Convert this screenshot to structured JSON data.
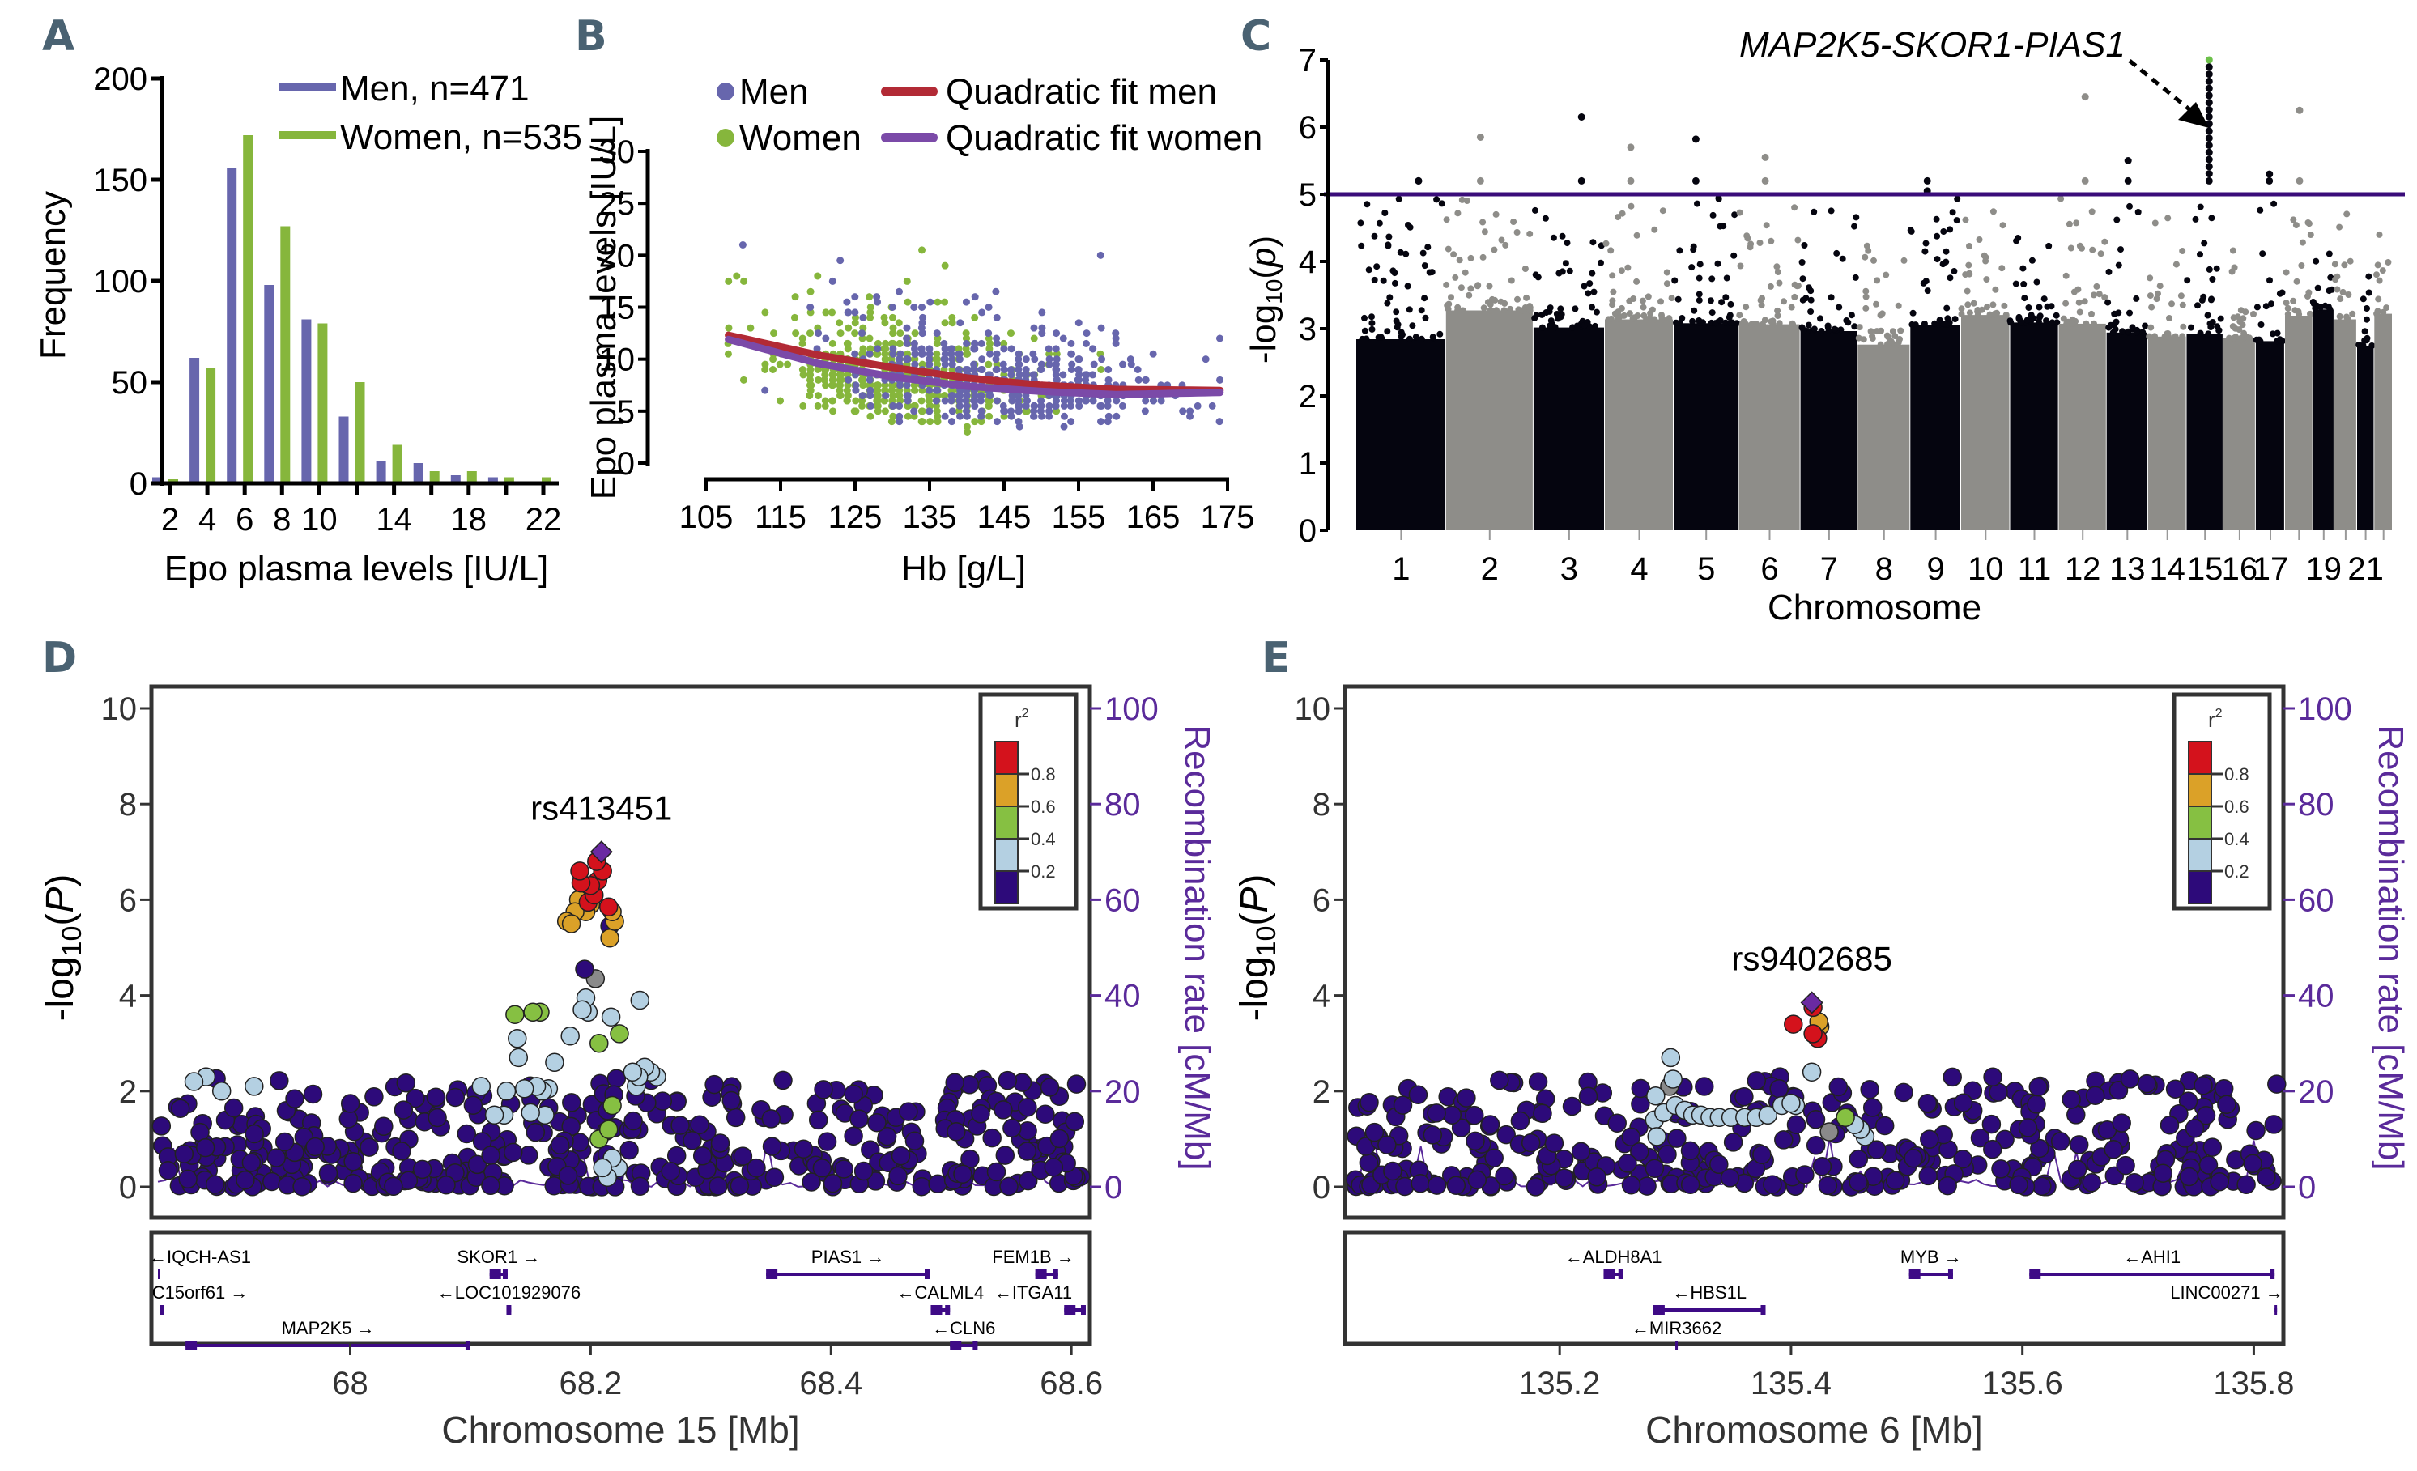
{
  "panels": {
    "A": "A",
    "B": "B",
    "C": "C",
    "D": "D",
    "E": "E"
  },
  "colors": {
    "men": "#6766ad",
    "women": "#86b63c",
    "fit_men": "#b22a35",
    "fit_women": "#7b4aa8",
    "threshold": "#3a0c7a",
    "chrom_dark": "#05050f",
    "chrom_light": "#8e8d89",
    "highlight": "#6cc04a",
    "r2_bins": [
      "#2d0a7a",
      "#b4d0e2",
      "#86c042",
      "#dba128",
      "#d4121c"
    ],
    "lead_snp": "#6a2aa2",
    "gene": "#3e0a86",
    "recomb": "#5a2a9a",
    "missing_r2": "#8a8a8a"
  },
  "chart_data": [
    {
      "id": "A",
      "type": "bar",
      "title": "",
      "xlabel": "Epo plasma levels [IU/L]",
      "ylabel": "Frequency",
      "ylim": [
        0,
        200
      ],
      "yticks": [
        0,
        50,
        100,
        150,
        200
      ],
      "categories": [
        2,
        4,
        6,
        8,
        10,
        12,
        14,
        16,
        18,
        20,
        22
      ],
      "xtick_labels": [
        "2",
        "4",
        "6",
        "8",
        "10",
        "14",
        "18",
        "22"
      ],
      "xtick_positions": [
        2,
        4,
        6,
        8,
        10,
        14,
        18,
        22
      ],
      "series": [
        {
          "name": "Men, n=471",
          "values": [
            3,
            62,
            156,
            98,
            81,
            33,
            11,
            10,
            4,
            3,
            0
          ]
        },
        {
          "name": "Women, n=535",
          "values": [
            2,
            57,
            172,
            127,
            79,
            50,
            19,
            6,
            6,
            3,
            3
          ]
        }
      ],
      "legend": "top-right"
    },
    {
      "id": "B",
      "type": "scatter",
      "xlabel": "Hb [g/L]",
      "ylabel": "Epo plasma levels [IU/L]",
      "xlim": [
        105,
        175
      ],
      "ylim": [
        0,
        30
      ],
      "xticks": [
        105,
        115,
        125,
        135,
        145,
        155,
        165,
        175
      ],
      "yticks": [
        0,
        5,
        10,
        15,
        20,
        25,
        30
      ],
      "series": [
        {
          "name": "Men",
          "kind": "points",
          "hb_range": [
            108,
            174
          ],
          "mean_hb": 146,
          "sd_hb": 11,
          "n": 471
        },
        {
          "name": "Women",
          "kind": "points",
          "hb_range": [
            108,
            158
          ],
          "mean_hb": 132,
          "sd_hb": 9,
          "n": 535
        },
        {
          "name": "Quadratic fit men",
          "kind": "line",
          "x": [
            108,
            120,
            130,
            140,
            150,
            160,
            174
          ],
          "y": [
            12.3,
            10.4,
            9.2,
            8.2,
            7.5,
            7.1,
            7.0
          ]
        },
        {
          "name": "Quadratic fit women",
          "kind": "line",
          "x": [
            108,
            120,
            130,
            140,
            150,
            160,
            174
          ],
          "y": [
            11.9,
            9.6,
            8.3,
            7.4,
            6.9,
            6.6,
            6.8
          ]
        }
      ],
      "legend": "top"
    },
    {
      "id": "C",
      "type": "scatter",
      "subtype": "manhattan",
      "xlabel": "Chromosome",
      "ylabel": "-log10(p)",
      "ylim": [
        0,
        7
      ],
      "yticks": [
        0,
        1,
        2,
        3,
        4,
        5,
        6,
        7
      ],
      "threshold": 5,
      "chromosome_labels": [
        "1",
        "2",
        "3",
        "4",
        "5",
        "6",
        "7",
        "8",
        "9",
        "10",
        "11",
        "12",
        "13",
        "14",
        "15",
        "16",
        "17",
        "19",
        "21"
      ],
      "chromosomes": [
        {
          "chr": 1,
          "max": 5.2
        },
        {
          "chr": 2,
          "max": 5.85
        },
        {
          "chr": 3,
          "max": 6.15
        },
        {
          "chr": 4,
          "max": 5.7
        },
        {
          "chr": 5,
          "max": 5.82
        },
        {
          "chr": 6,
          "max": 5.55
        },
        {
          "chr": 7,
          "max": 4.9
        },
        {
          "chr": 8,
          "max": 4.3
        },
        {
          "chr": 9,
          "max": 5.05
        },
        {
          "chr": 10,
          "max": 4.75
        },
        {
          "chr": 11,
          "max": 4.4
        },
        {
          "chr": 12,
          "max": 6.45
        },
        {
          "chr": 13,
          "max": 5.5
        },
        {
          "chr": 14,
          "max": 4.7
        },
        {
          "chr": 15,
          "max": 7.0
        },
        {
          "chr": 16,
          "max": 4.4
        },
        {
          "chr": 17,
          "max": 5.3
        },
        {
          "chr": 18,
          "max": 6.25
        },
        {
          "chr": 19,
          "max": 4.6
        },
        {
          "chr": 20,
          "max": 4.85
        },
        {
          "chr": 21,
          "max": 4.2
        },
        {
          "chr": 22,
          "max": 4.45
        }
      ],
      "annotation": "MAP2K5-SKOR1-PIAS1",
      "annotation_target_chr": 15
    },
    {
      "id": "D",
      "type": "scatter",
      "subtype": "regional-association",
      "xlabel": "Chromosome 15 [Mb]",
      "ylabel": "-log10(P)",
      "y2label": "Recombination rate [cM/Mb]",
      "xlim": [
        67.84,
        68.61
      ],
      "ylim": [
        -0.5,
        10.5
      ],
      "yticks": [
        0,
        2,
        4,
        6,
        8,
        10
      ],
      "y2ticks": [
        0,
        20,
        40,
        60,
        80,
        100
      ],
      "xticks": [
        68.0,
        68.2,
        68.4,
        68.6
      ],
      "xtick_labels": [
        "68",
        "68.2",
        "68.4",
        "68.6"
      ],
      "lead_snp": {
        "label": "rs413451",
        "x": 68.209,
        "y": 7.0
      },
      "legend_title": "r²",
      "legend_ticks": [
        "0.8",
        "0.6",
        "0.4",
        "0.2"
      ],
      "highlight_points": [
        {
          "x": 68.209,
          "y": 7.0,
          "r2": "lead"
        },
        {
          "x": 68.205,
          "y": 6.8,
          "r2": 0.9
        },
        {
          "x": 68.191,
          "y": 6.6,
          "r2": 0.9
        },
        {
          "x": 68.21,
          "y": 6.6,
          "r2": 0.9
        },
        {
          "x": 68.192,
          "y": 6.35,
          "r2": 0.9
        },
        {
          "x": 68.2,
          "y": 6.3,
          "r2": 0.9
        },
        {
          "x": 68.206,
          "y": 6.4,
          "r2": 0.9
        },
        {
          "x": 68.203,
          "y": 6.1,
          "r2": 0.9
        },
        {
          "x": 68.198,
          "y": 5.95,
          "r2": 0.9
        },
        {
          "x": 68.215,
          "y": 5.85,
          "r2": 0.9
        },
        {
          "x": 68.184,
          "y": 5.5,
          "r2": 0.7
        },
        {
          "x": 68.18,
          "y": 5.55,
          "r2": 0.7
        },
        {
          "x": 68.187,
          "y": 5.75,
          "r2": 0.7
        },
        {
          "x": 68.19,
          "y": 6.0,
          "r2": 0.7
        },
        {
          "x": 68.196,
          "y": 5.75,
          "r2": 0.7
        },
        {
          "x": 68.2,
          "y": 5.9,
          "r2": 0.7
        },
        {
          "x": 68.218,
          "y": 5.75,
          "r2": 0.7
        },
        {
          "x": 68.22,
          "y": 5.55,
          "r2": 0.7
        },
        {
          "x": 68.216,
          "y": 5.2,
          "r2": 0.7
        },
        {
          "x": 68.216,
          "y": 5.45,
          "r2": 0.1
        },
        {
          "x": 68.195,
          "y": 4.55,
          "r2": 0.1
        },
        {
          "x": 68.204,
          "y": 4.35,
          "r2": "na"
        },
        {
          "x": 68.137,
          "y": 3.6,
          "r2": 0.5
        },
        {
          "x": 68.152,
          "y": 3.65,
          "r2": 0.5
        },
        {
          "x": 68.158,
          "y": 3.65,
          "r2": 0.5
        },
        {
          "x": 68.207,
          "y": 3.0,
          "r2": 0.5
        },
        {
          "x": 68.224,
          "y": 3.2,
          "r2": 0.5
        },
        {
          "x": 68.218,
          "y": 1.7,
          "r2": 0.5
        },
        {
          "x": 68.215,
          "y": 1.2,
          "r2": 0.5
        },
        {
          "x": 68.207,
          "y": 1.0,
          "r2": 0.5
        },
        {
          "x": 68.193,
          "y": 3.7,
          "r2": 0.3
        },
        {
          "x": 68.196,
          "y": 3.95,
          "r2": 0.3
        },
        {
          "x": 68.198,
          "y": 3.65,
          "r2": 0.3
        },
        {
          "x": 68.217,
          "y": 3.55,
          "r2": 0.3
        },
        {
          "x": 68.241,
          "y": 3.9,
          "r2": 0.3
        },
        {
          "x": 68.139,
          "y": 3.1,
          "r2": 0.3
        },
        {
          "x": 68.14,
          "y": 2.7,
          "r2": 0.3
        },
        {
          "x": 68.183,
          "y": 3.15,
          "r2": 0.3
        },
        {
          "x": 68.17,
          "y": 2.6,
          "r2": 0.3
        },
        {
          "x": 68.235,
          "y": 2.4,
          "r2": 0.3
        },
        {
          "x": 68.24,
          "y": 2.3,
          "r2": 0.3
        },
        {
          "x": 68.245,
          "y": 2.5,
          "r2": 0.3
        },
        {
          "x": 68.25,
          "y": 2.4,
          "r2": 0.3
        },
        {
          "x": 68.255,
          "y": 2.3,
          "r2": 0.3
        },
        {
          "x": 68.238,
          "y": 2.1,
          "r2": 0.3
        },
        {
          "x": 68.13,
          "y": 2.0,
          "r2": 0.3
        },
        {
          "x": 68.145,
          "y": 2.05,
          "r2": 0.3
        },
        {
          "x": 68.155,
          "y": 2.1,
          "r2": 0.3
        },
        {
          "x": 68.16,
          "y": 2.0,
          "r2": 0.3
        },
        {
          "x": 68.165,
          "y": 2.05,
          "r2": 0.3
        },
        {
          "x": 68.109,
          "y": 2.1,
          "r2": 0.3
        },
        {
          "x": 67.87,
          "y": 2.2,
          "r2": 0.3
        },
        {
          "x": 67.88,
          "y": 2.3,
          "r2": 0.3
        },
        {
          "x": 67.893,
          "y": 2.0,
          "r2": 0.3
        },
        {
          "x": 67.92,
          "y": 2.1,
          "r2": 0.3
        },
        {
          "x": 68.21,
          "y": 0.4,
          "r2": 0.3
        },
        {
          "x": 68.214,
          "y": 0.2,
          "r2": 0.3
        },
        {
          "x": 68.218,
          "y": 0.6,
          "r2": 0.3
        },
        {
          "x": 68.223,
          "y": 0.4,
          "r2": 0.3
        },
        {
          "x": 68.12,
          "y": 1.5,
          "r2": 0.3
        },
        {
          "x": 68.128,
          "y": 1.5,
          "r2": 0.3
        },
        {
          "x": 68.15,
          "y": 1.55,
          "r2": 0.3
        },
        {
          "x": 68.162,
          "y": 1.5,
          "r2": 0.3
        }
      ],
      "background": {
        "r2": 0.1,
        "n": 420,
        "seed": 15
      },
      "genes": [
        {
          "name": "IQCH-AS1",
          "dir": "left",
          "row": 0,
          "start": 67.84,
          "end": 67.842
        },
        {
          "name": "SKOR1",
          "dir": "right",
          "row": 0,
          "start": 68.116,
          "end": 68.131
        },
        {
          "name": "PIAS1",
          "dir": "right",
          "row": 0,
          "start": 68.346,
          "end": 68.482
        },
        {
          "name": "FEM1B",
          "dir": "right",
          "row": 0,
          "start": 68.57,
          "end": 68.589
        },
        {
          "name": "C15orf61",
          "dir": "right",
          "row": 1,
          "start": 67.842,
          "end": 67.845
        },
        {
          "name": "LOC101929076",
          "dir": "left",
          "row": 1,
          "start": 68.13,
          "end": 68.134
        },
        {
          "name": "CALML4",
          "dir": "left",
          "row": 1,
          "start": 68.483,
          "end": 68.499
        },
        {
          "name": "ITGA11",
          "dir": "left",
          "row": 1,
          "start": 68.594,
          "end": 68.612
        },
        {
          "name": "MAP2K5",
          "dir": "right",
          "row": 2,
          "start": 67.863,
          "end": 68.1
        },
        {
          "name": "CLN6",
          "dir": "left",
          "row": 2,
          "start": 68.499,
          "end": 68.522
        }
      ]
    },
    {
      "id": "E",
      "type": "scatter",
      "subtype": "regional-association",
      "xlabel": "Chromosome 6 [Mb]",
      "ylabel": "-log10(P)",
      "y2label": "Recombination rate [cM/Mb]",
      "xlim": [
        135.02,
        135.82
      ],
      "ylim": [
        -0.5,
        10.5
      ],
      "yticks": [
        0,
        2,
        4,
        6,
        8,
        10
      ],
      "y2ticks": [
        0,
        20,
        40,
        60,
        80,
        100
      ],
      "xticks": [
        135.2,
        135.4,
        135.6,
        135.8
      ],
      "xtick_labels": [
        "135.2",
        "135.4",
        "135.6",
        "135.8"
      ],
      "lead_snp": {
        "label": "rs9402685",
        "x": 135.418,
        "y": 3.85
      },
      "legend_title": "r²",
      "legend_ticks": [
        "0.8",
        "0.6",
        "0.4",
        "0.2"
      ],
      "highlight_points": [
        {
          "x": 135.418,
          "y": 3.85,
          "r2": "lead"
        },
        {
          "x": 135.419,
          "y": 3.75,
          "r2": 0.9
        },
        {
          "x": 135.402,
          "y": 3.4,
          "r2": 0.9
        },
        {
          "x": 135.419,
          "y": 3.2,
          "r2": 0.9
        },
        {
          "x": 135.423,
          "y": 3.1,
          "r2": 0.9
        },
        {
          "x": 135.424,
          "y": 3.45,
          "r2": 0.7
        },
        {
          "x": 135.425,
          "y": 3.35,
          "r2": 0.7
        },
        {
          "x": 135.447,
          "y": 1.45,
          "r2": 0.5
        },
        {
          "x": 135.418,
          "y": 2.4,
          "r2": 0.3
        },
        {
          "x": 135.4,
          "y": 1.75,
          "r2": 0.3
        },
        {
          "x": 135.404,
          "y": 1.7,
          "r2": 0.3
        },
        {
          "x": 135.392,
          "y": 1.7,
          "r2": 0.3
        },
        {
          "x": 135.38,
          "y": 1.5,
          "r2": 0.3
        },
        {
          "x": 135.37,
          "y": 1.45,
          "r2": 0.3
        },
        {
          "x": 135.36,
          "y": 1.45,
          "r2": 0.3
        },
        {
          "x": 135.348,
          "y": 1.45,
          "r2": 0.3
        },
        {
          "x": 135.338,
          "y": 1.45,
          "r2": 0.3
        },
        {
          "x": 135.33,
          "y": 1.45,
          "r2": 0.3
        },
        {
          "x": 135.322,
          "y": 1.5,
          "r2": 0.3
        },
        {
          "x": 135.315,
          "y": 1.5,
          "r2": 0.3
        },
        {
          "x": 135.308,
          "y": 1.6,
          "r2": 0.3
        },
        {
          "x": 135.3,
          "y": 1.7,
          "r2": 0.3
        },
        {
          "x": 135.296,
          "y": 2.7,
          "r2": 0.3
        },
        {
          "x": 135.298,
          "y": 2.25,
          "r2": 0.3
        },
        {
          "x": 135.29,
          "y": 1.55,
          "r2": 0.3
        },
        {
          "x": 135.284,
          "y": 1.05,
          "r2": 0.3
        },
        {
          "x": 135.283,
          "y": 1.9,
          "r2": 0.3
        },
        {
          "x": 135.282,
          "y": 1.4,
          "r2": 0.3
        },
        {
          "x": 135.455,
          "y": 1.3,
          "r2": 0.3
        },
        {
          "x": 135.46,
          "y": 1.2,
          "r2": 0.3
        },
        {
          "x": 135.464,
          "y": 1.05,
          "r2": 0.3
        },
        {
          "x": 135.295,
          "y": 2.1,
          "r2": "na"
        },
        {
          "x": 135.433,
          "y": 1.15,
          "r2": "na"
        }
      ],
      "background": {
        "r2": 0.1,
        "n": 380,
        "seed": 6
      },
      "genes": [
        {
          "name": "ALDH8A1",
          "dir": "left",
          "row": 0,
          "start": 135.238,
          "end": 135.255
        },
        {
          "name": "MYB",
          "dir": "right",
          "row": 0,
          "start": 135.502,
          "end": 135.54
        },
        {
          "name": "AHI1",
          "dir": "left",
          "row": 0,
          "start": 135.606,
          "end": 135.818
        },
        {
          "name": "HBS1L",
          "dir": "left",
          "row": 1,
          "start": 135.281,
          "end": 135.378
        },
        {
          "name": "LINC00271",
          "dir": "right",
          "row": 1,
          "start": 135.818,
          "end": 135.82
        },
        {
          "name": "MIR3662",
          "dir": "left",
          "row": 2,
          "start": 135.3,
          "end": 135.301
        }
      ]
    }
  ]
}
